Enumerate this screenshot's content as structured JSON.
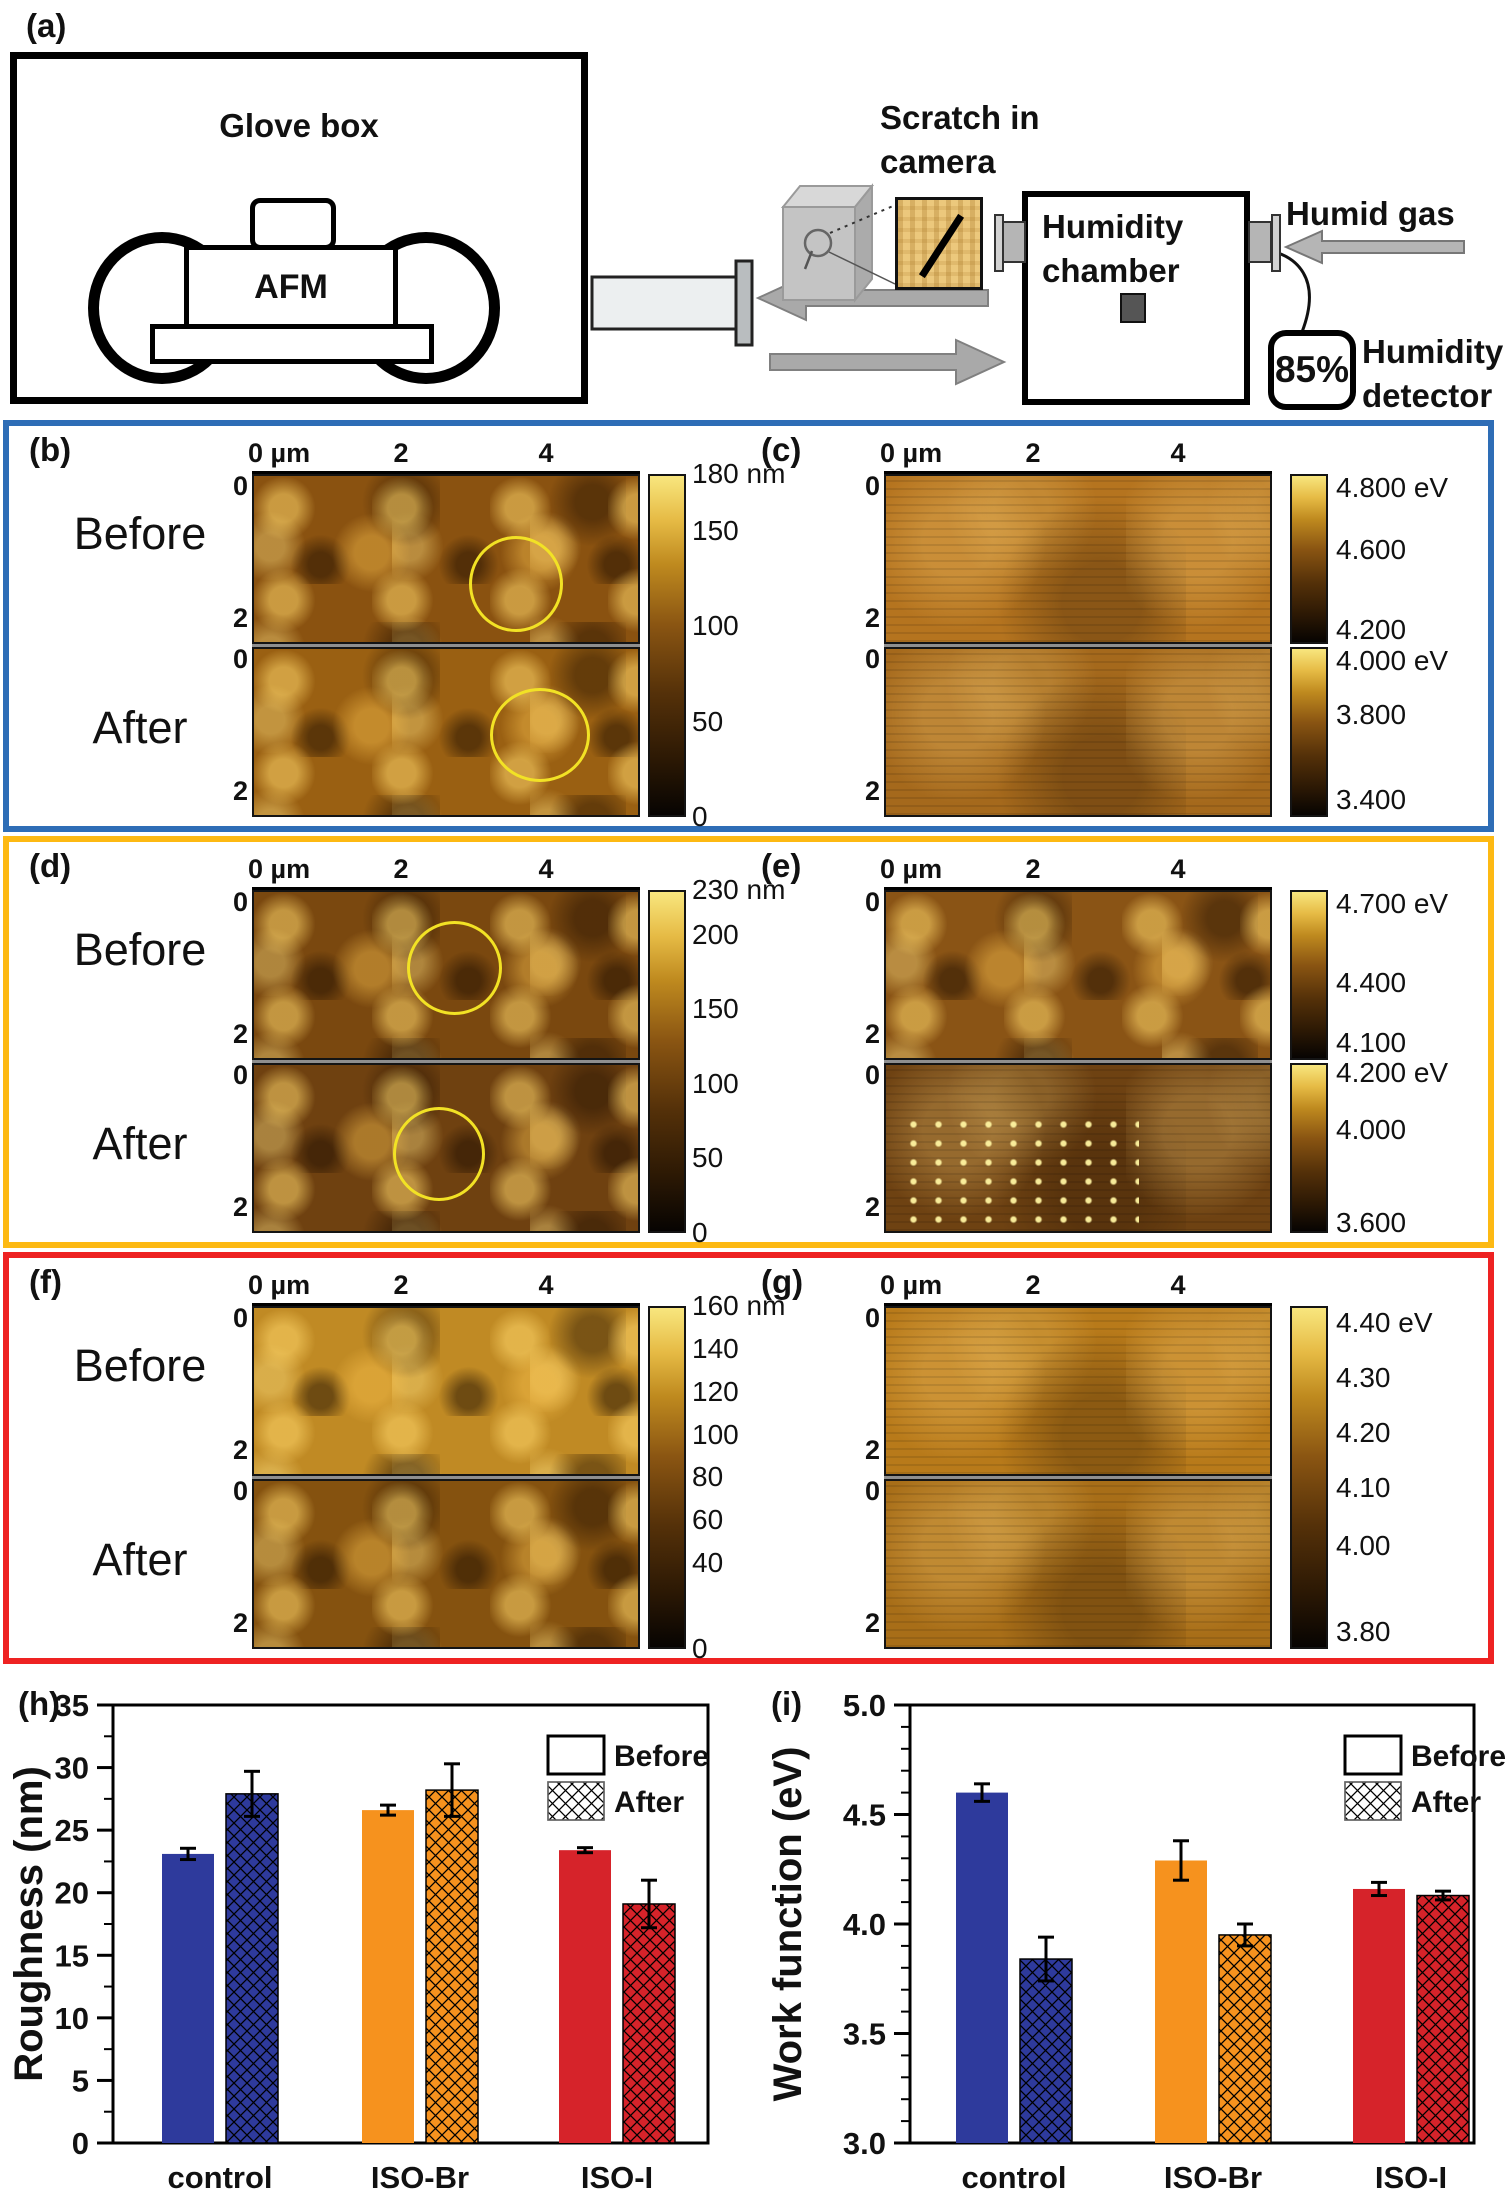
{
  "panel_a": {
    "label": "(a)",
    "glove_box": "Glove box",
    "afm": "AFM",
    "scratch_line1": "Scratch in",
    "scratch_line2": "camera",
    "chamber_line1": "Humidity",
    "chamber_line2": "chamber",
    "humid_gas": "Humid gas",
    "humidity_value": "85%",
    "detector_line1": "Humidity",
    "detector_line2": "detector"
  },
  "panels": {
    "b": {
      "label": "(b)",
      "before": "Before",
      "after": "After",
      "x_ticks": [
        "0 µm",
        "2",
        "4"
      ],
      "y_ticks": [
        "0",
        "2"
      ],
      "colorbar": [
        "180 nm",
        "150",
        "100",
        "50",
        "0"
      ]
    },
    "c": {
      "label": "(c)",
      "x_ticks": [
        "0 µm",
        "2",
        "4"
      ],
      "y_ticks": [
        "0",
        "2"
      ],
      "colorbar_top": [
        "4.800 eV",
        "4.600",
        "4.200"
      ],
      "colorbar_bottom": [
        "4.000 eV",
        "3.800",
        "3.400"
      ]
    },
    "d": {
      "label": "(d)",
      "before": "Before",
      "after": "After",
      "x_ticks": [
        "0 µm",
        "2",
        "4"
      ],
      "y_ticks": [
        "0",
        "2"
      ],
      "colorbar": [
        "230 nm",
        "200",
        "150",
        "100",
        "50",
        "0"
      ]
    },
    "e": {
      "label": "(e)",
      "x_ticks": [
        "0 µm",
        "2",
        "4"
      ],
      "y_ticks": [
        "0",
        "2"
      ],
      "colorbar_top": [
        "4.700 eV",
        "4.400",
        "4.100"
      ],
      "colorbar_bottom": [
        "4.200 eV",
        "4.000",
        "3.600"
      ]
    },
    "f": {
      "label": "(f)",
      "before": "Before",
      "after": "After",
      "x_ticks": [
        "0 µm",
        "2",
        "4"
      ],
      "y_ticks": [
        "0",
        "2"
      ],
      "colorbar": [
        "160 nm",
        "140",
        "120",
        "100",
        "80",
        "60",
        "40",
        "0"
      ]
    },
    "g": {
      "label": "(g)",
      "x_ticks": [
        "0 µm",
        "2",
        "4"
      ],
      "y_ticks": [
        "0",
        "2"
      ],
      "colorbar": [
        "4.40 eV",
        "4.30",
        "4.20",
        "4.10",
        "4.00",
        "3.80"
      ]
    }
  },
  "chart_data": [
    {
      "type": "bar",
      "panel_label": "(h)",
      "ylabel": "Roughness (nm)",
      "ylim": [
        0,
        35
      ],
      "yticks": [
        "0",
        "5",
        "10",
        "15",
        "20",
        "25",
        "30",
        "35"
      ],
      "y_minor_step": 2.5,
      "categories": [
        "control",
        "ISO-Br",
        "ISO-I"
      ],
      "series": [
        {
          "name": "Before",
          "values": [
            23.1,
            26.6,
            23.4
          ],
          "errors": [
            0.45,
            0.4,
            0.2
          ]
        },
        {
          "name": "After",
          "values": [
            27.9,
            28.2,
            19.1
          ],
          "errors": [
            1.8,
            2.1,
            1.9
          ]
        }
      ],
      "legend": [
        "Before",
        "After"
      ],
      "legend_position": "top-right",
      "grid": false
    },
    {
      "type": "bar",
      "panel_label": "(i)",
      "ylabel": "Work function (eV)",
      "ylim": [
        3.0,
        5.0
      ],
      "yticks": [
        "3.0",
        "3.5",
        "4.0",
        "4.5",
        "5.0"
      ],
      "y_minor_step": 0.1,
      "categories": [
        "control",
        "ISO-Br",
        "ISO-I"
      ],
      "series": [
        {
          "name": "Before",
          "values": [
            4.6,
            4.29,
            4.16
          ],
          "errors": [
            0.04,
            0.09,
            0.03
          ]
        },
        {
          "name": "After",
          "values": [
            3.84,
            3.95,
            4.13
          ],
          "errors": [
            0.1,
            0.05,
            0.02
          ]
        }
      ],
      "legend": [
        "Before",
        "After"
      ],
      "legend_position": "top-right",
      "grid": false
    }
  ],
  "colors": {
    "row_borders": [
      "#2e6db6",
      "#fdb913",
      "#ee2222"
    ],
    "bars": [
      "#2e3a9c",
      "#f6921e",
      "#d6232a"
    ],
    "highlight_circle": "#f2e225",
    "colorbar_top": "#f8e67e",
    "colorbar_bottom": "#070402"
  }
}
